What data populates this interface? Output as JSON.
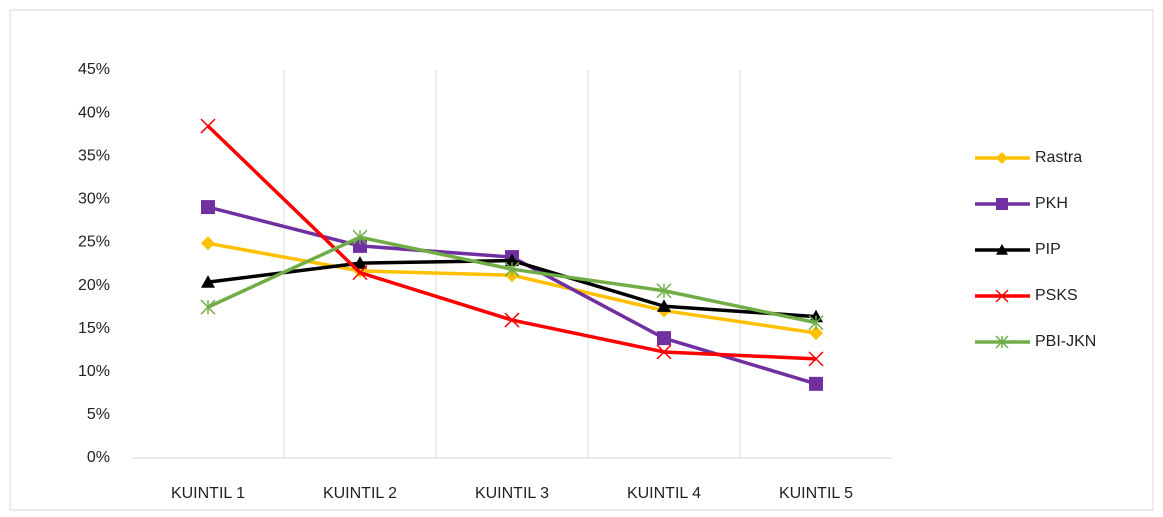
{
  "chart_data": {
    "type": "line",
    "categories": [
      "KUINTIL 1",
      "KUINTIL 2",
      "KUINTIL 3",
      "KUINTIL 4",
      "KUINTIL 5"
    ],
    "series": [
      {
        "name": "Rastra",
        "color": "#FFC000",
        "marker": "diamond",
        "values": [
          24.9,
          21.7,
          21.2,
          17.1,
          14.5
        ]
      },
      {
        "name": "PKH",
        "color": "#7030A0",
        "marker": "square",
        "values": [
          29.1,
          24.6,
          23.3,
          13.9,
          8.6
        ]
      },
      {
        "name": "PIP",
        "color": "#000000",
        "marker": "triangle",
        "values": [
          20.4,
          22.6,
          22.9,
          17.6,
          16.4
        ]
      },
      {
        "name": "PSKS",
        "color": "#FF0000",
        "marker": "x",
        "values": [
          38.5,
          21.5,
          16.0,
          12.3,
          11.5
        ]
      },
      {
        "name": "PBI-JKN",
        "color": "#70AD47",
        "marker": "asterisk",
        "values": [
          17.5,
          25.6,
          21.9,
          19.4,
          15.7
        ]
      }
    ],
    "ylim": [
      0,
      45
    ],
    "yticks": [
      {
        "value": 0,
        "label": "0%"
      },
      {
        "value": 5,
        "label": "5%"
      },
      {
        "value": 10,
        "label": "10%"
      },
      {
        "value": 15,
        "label": "15%"
      },
      {
        "value": 20,
        "label": "20%"
      },
      {
        "value": 25,
        "label": "25%"
      },
      {
        "value": 30,
        "label": "30%"
      },
      {
        "value": 35,
        "label": "35%"
      },
      {
        "value": 40,
        "label": "40%"
      },
      {
        "value": 45,
        "label": "45%"
      }
    ],
    "grid": "x",
    "legend": "right"
  }
}
